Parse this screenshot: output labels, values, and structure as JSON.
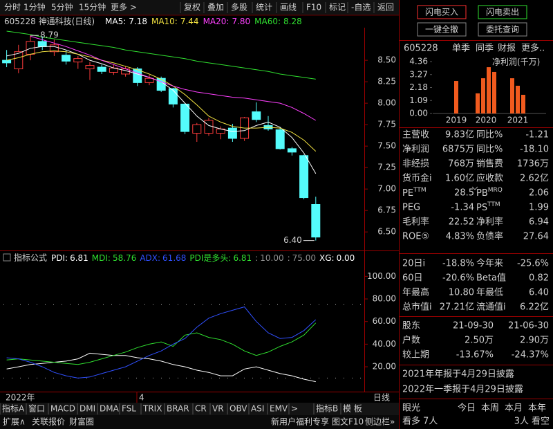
{
  "toolbar": {
    "left": [
      "分时",
      "1分钟",
      "5分钟",
      "15分钟",
      "更多 >"
    ],
    "right": [
      "复权",
      "叠加",
      "多股",
      "统计",
      "画线",
      "F10",
      "标记",
      "-自选",
      "返回"
    ]
  },
  "trade_buttons": [
    "闪电买入",
    "闪电卖出",
    "一键全撤",
    "委托查询"
  ],
  "stock": {
    "code": "605228",
    "name": "神通科技(日线)"
  },
  "kline": {
    "type": "candlestick",
    "up_color": "#ff3c3c",
    "down_color": "#54fcfc",
    "open": [
      8.5,
      8.4,
      8.57,
      8.72,
      8.6,
      8.56,
      8.48,
      8.4,
      8.42,
      8.36,
      8.34,
      8.4,
      8.24,
      8.29,
      8.17,
      7.99,
      7.65,
      7.65,
      7.65,
      7.71,
      7.59,
      7.9,
      7.74,
      7.69,
      7.47,
      7.39,
      6.82
    ],
    "high": [
      8.62,
      8.68,
      8.79,
      8.78,
      8.74,
      8.62,
      8.55,
      8.48,
      8.45,
      8.45,
      8.43,
      8.42,
      8.33,
      8.31,
      8.18,
      8.0,
      7.77,
      7.83,
      7.73,
      7.76,
      7.84,
      8.01,
      7.85,
      7.72,
      7.49,
      7.4,
      6.91
    ],
    "low": [
      8.42,
      8.35,
      8.5,
      8.62,
      8.55,
      8.45,
      8.4,
      8.27,
      8.34,
      8.33,
      8.31,
      8.2,
      8.21,
      8.13,
      7.95,
      7.64,
      7.55,
      7.62,
      7.58,
      7.55,
      7.56,
      7.78,
      7.68,
      7.46,
      7.39,
      6.88,
      6.4
    ],
    "close": [
      8.47,
      8.6,
      8.72,
      8.66,
      8.68,
      8.49,
      8.52,
      8.44,
      8.37,
      8.41,
      8.4,
      8.24,
      8.29,
      8.15,
      7.99,
      7.67,
      7.75,
      7.8,
      7.7,
      7.59,
      7.83,
      7.81,
      7.7,
      7.47,
      7.43,
      6.9,
      6.44
    ],
    "ma": [
      {
        "label": "MA5:",
        "value_label": "7.18",
        "color": "#ffffff",
        "values": [
          8.55,
          8.58,
          8.64,
          8.66,
          8.66,
          8.62,
          8.57,
          8.5,
          8.46,
          8.41,
          8.38,
          8.34,
          8.3,
          8.25,
          8.15,
          8.0,
          7.85,
          7.74,
          7.7,
          7.67,
          7.68,
          7.74,
          7.78,
          7.72,
          7.6,
          7.42,
          7.18
        ]
      },
      {
        "label": "MA10:",
        "value_label": "7.44",
        "color": "#f0e040",
        "values": [
          8.5,
          8.53,
          8.57,
          8.6,
          8.61,
          8.6,
          8.57,
          8.54,
          8.5,
          8.47,
          8.43,
          8.39,
          8.34,
          8.28,
          8.2,
          8.1,
          7.98,
          7.85,
          7.78,
          7.73,
          7.71,
          7.71,
          7.72,
          7.71,
          7.66,
          7.57,
          7.44
        ]
      },
      {
        "label": "MA20:",
        "value_label": "7.80",
        "color": "#ff40ff",
        "values": [
          null,
          null,
          8.78,
          8.74,
          8.7,
          8.66,
          8.61,
          8.56,
          8.5,
          8.45,
          8.4,
          8.35,
          8.3,
          8.25,
          8.2,
          8.16,
          8.13,
          8.11,
          8.09,
          8.07,
          8.06,
          8.04,
          8.02,
          8.0,
          7.95,
          7.88,
          7.8
        ]
      },
      {
        "label": "MA60:",
        "value_label": "8.28",
        "color": "#30e030",
        "values": [
          8.84,
          8.82,
          8.8,
          8.77,
          8.75,
          8.73,
          8.71,
          8.69,
          8.67,
          8.65,
          8.62,
          8.6,
          8.58,
          8.56,
          8.54,
          8.52,
          8.49,
          8.47,
          8.45,
          8.43,
          8.41,
          8.39,
          8.37,
          8.34,
          8.32,
          8.3,
          8.28
        ]
      }
    ],
    "ylim": [
      6.3,
      8.88
    ],
    "yticks": [
      {
        "value": 8.5,
        "label": "8.50"
      },
      {
        "value": 8.25,
        "label": "8.25"
      },
      {
        "value": 8,
        "label": "8.00"
      },
      {
        "value": 7.75,
        "label": "7.75"
      },
      {
        "value": 7.5,
        "label": "7.50"
      },
      {
        "value": 7.25,
        "label": "7.25"
      },
      {
        "value": 7,
        "label": "7.00"
      },
      {
        "value": 6.75,
        "label": "6.75"
      },
      {
        "value": 6.5,
        "label": "6.50"
      }
    ],
    "annotations": [
      {
        "value": 8.79,
        "label": "8.79"
      },
      {
        "value": 6.4,
        "label": "6.40"
      }
    ]
  },
  "indicator": {
    "type": "line",
    "title": "指标公式",
    "header": [
      {
        "name": "PDI:",
        "label": "6.81",
        "color": "#ffffff"
      },
      {
        "name": "MDI:",
        "label": "58.76",
        "color": "#30e030"
      },
      {
        "name": "ADX:",
        "label": "61.68",
        "color": "#3050ff"
      },
      {
        "name": "PDI是多头:",
        "label": "6.81",
        "color": "#30e030"
      },
      {
        "name": ":",
        "label": "10.00",
        "color": "#909090"
      },
      {
        "name": ":",
        "label": "75.00",
        "color": "#909090"
      },
      {
        "name": "XG:",
        "label": "0.00",
        "color": "#ffffff"
      }
    ],
    "levels": [
      10,
      75
    ],
    "series": [
      {
        "color": "#ffffff",
        "values": [
          18,
          20,
          22,
          23,
          24,
          25,
          27,
          32,
          31,
          30,
          30,
          28,
          27,
          25,
          22,
          20,
          17,
          15,
          12,
          12,
          18,
          20,
          17,
          14,
          12,
          9,
          6.81
        ]
      },
      {
        "color": "#30e030",
        "values": [
          26,
          27,
          26,
          25,
          24,
          23,
          22,
          24,
          27,
          30,
          33,
          37,
          40,
          42,
          38,
          48,
          50,
          46,
          44,
          40,
          34,
          30,
          33,
          38,
          42,
          48,
          58.76
        ]
      },
      {
        "color": "#3050ff",
        "values": [
          28,
          27,
          24,
          20,
          15,
          12,
          10,
          11,
          14,
          17,
          20,
          25,
          30,
          34,
          40,
          45,
          55,
          63,
          67,
          70,
          73,
          60,
          50,
          45,
          46,
          52,
          61.68
        ]
      }
    ],
    "ylim": [
      -2,
      110
    ],
    "yticks": [
      {
        "value": 100,
        "label": "100.00"
      },
      {
        "value": 80,
        "label": "80.00"
      },
      {
        "value": 60,
        "label": "60.00"
      },
      {
        "value": 40,
        "label": "40.00"
      },
      {
        "value": 20,
        "label": "20.00"
      }
    ]
  },
  "date_bar": {
    "year": "2022年",
    "month": "4",
    "period": "日线"
  },
  "tabs": {
    "left": [
      "指标A",
      "窗口",
      "MACD",
      "DMI",
      "DMA",
      "FSL",
      "TRIX",
      "BRAR",
      "CR",
      "VR",
      "OBV",
      "ASI",
      "EMV",
      ">"
    ],
    "right": [
      "指标B",
      "模 板"
    ]
  },
  "status_bar": {
    "left": [
      "扩展∧",
      "关联报价",
      "财富圈"
    ],
    "right": [
      "新用户福利专享",
      "图文F10",
      "侧边栏»"
    ]
  },
  "quote_panel": {
    "code": "605228",
    "tabs": [
      "单季",
      "同季",
      "财报",
      "更多.."
    ],
    "active_tab": 0,
    "profit_chart": {
      "type": "bar",
      "title": "净利润(千万)",
      "color": "#f05a1e",
      "ylim": [
        0,
        4.36
      ],
      "yticks": [
        4.36,
        3.27,
        2.18,
        1.09,
        {
          "value": 0,
          "label": "0.00"
        }
      ],
      "groups": [
        {
          "label": "2019",
          "values": [
            2.73
          ]
        },
        {
          "label": "2020",
          "values": [
            1.69,
            2.96,
            3.89,
            3.49
          ]
        },
        {
          "label": "2021",
          "values": [
            2.96,
            2.33,
            1.57
          ]
        }
      ]
    },
    "fundamentals": [
      [
        "主营收",
        "9.83亿",
        "同比%",
        "-1.21"
      ],
      [
        "净利润",
        "6875万",
        "同比%",
        "-18.10"
      ],
      [
        "非经损",
        "768万",
        "销售费",
        "1736万"
      ],
      [
        "货币金i",
        "1.60亿",
        "应收款",
        "2.62亿"
      ],
      [
        {
          "text": "PE",
          "sup": "TTM"
        },
        "28.5",
        {
          "text": "PB",
          "sup": "MRQ"
        },
        "2.06"
      ],
      [
        "PEG",
        "-1.34",
        {
          "text": "PS",
          "sup": "TTM"
        },
        "1.99"
      ],
      [
        "毛利率",
        "22.52",
        "净利率",
        "6.94"
      ],
      [
        "ROE⑤",
        "4.83%",
        "负债率",
        "27.64"
      ]
    ],
    "performance": [
      [
        "20日i",
        "-18.8%",
        "今年来",
        "-25.6%"
      ],
      [
        "60日",
        "-20.6%",
        "Beta值",
        "0.82"
      ],
      [
        "年最高",
        "10.80",
        "年最低",
        "6.40"
      ],
      [
        "总市值i",
        "27.21亿",
        "流通值i",
        "6.22亿"
      ]
    ],
    "holders": [
      [
        "股东",
        "21-09-30",
        "21-06-30"
      ],
      [
        "户数",
        "2.50万",
        "2.90万"
      ],
      [
        "较上期",
        "-13.67%",
        "-24.37%"
      ]
    ],
    "notices": [
      "2021年年报于4月29日披露",
      "2022年一季报于4月29日披露"
    ],
    "sentiment": {
      "header": [
        "眼光",
        "今日",
        "本周",
        "本月",
        "本年"
      ],
      "active": 2,
      "bull_label": "看多",
      "bull": "7人",
      "bear": "3人",
      "bear_label": "看空"
    }
  }
}
